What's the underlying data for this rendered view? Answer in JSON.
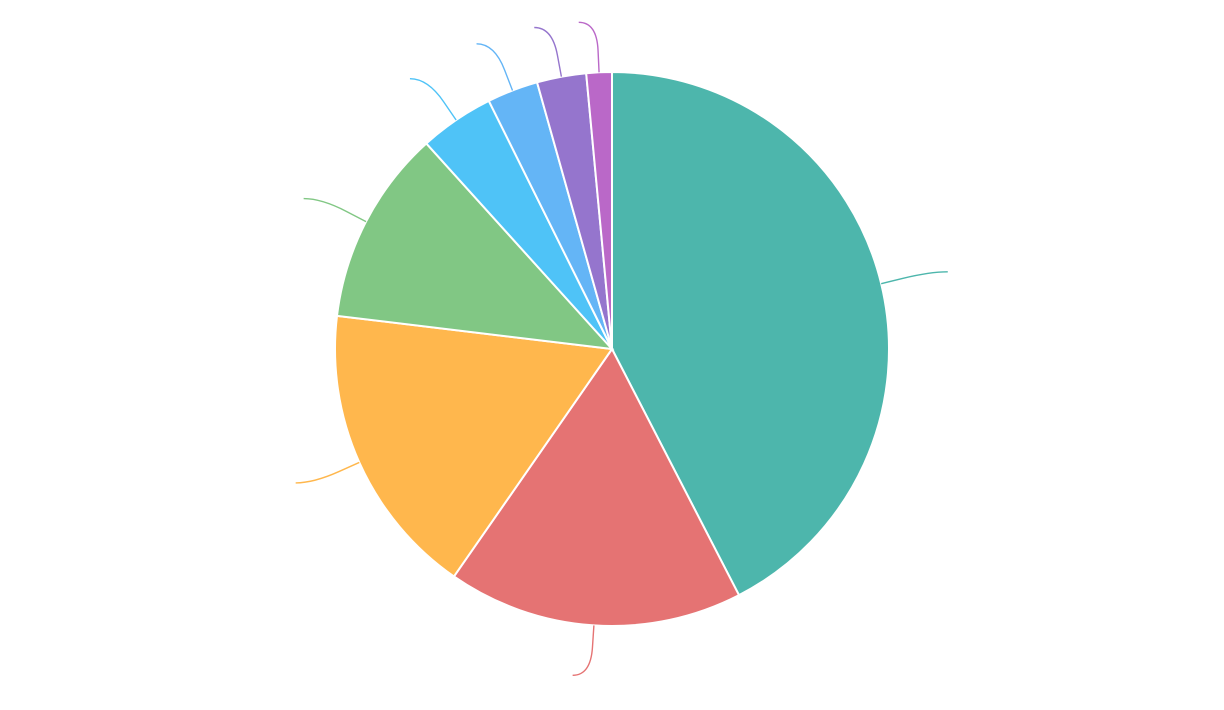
{
  "chart_data": {
    "type": "pie",
    "title": "",
    "legend": "none",
    "start_angle": "top",
    "direction": "clockwise",
    "slices": [
      {
        "label": "",
        "value": 42.8,
        "color": "#4DB6AC"
      },
      {
        "label": "",
        "value": 17.4,
        "color": "#E57373"
      },
      {
        "label": "",
        "value": 17.4,
        "color": "#FFB74D"
      },
      {
        "label": "",
        "value": 11.5,
        "color": "#81C784"
      },
      {
        "label": "",
        "value": 4.4,
        "color": "#4FC3F7"
      },
      {
        "label": "",
        "value": 3.0,
        "color": "#64B5F6"
      },
      {
        "label": "",
        "value": 2.9,
        "color": "#9575CD"
      },
      {
        "label": "",
        "value": 1.5,
        "color": "#BA68C8"
      }
    ]
  }
}
